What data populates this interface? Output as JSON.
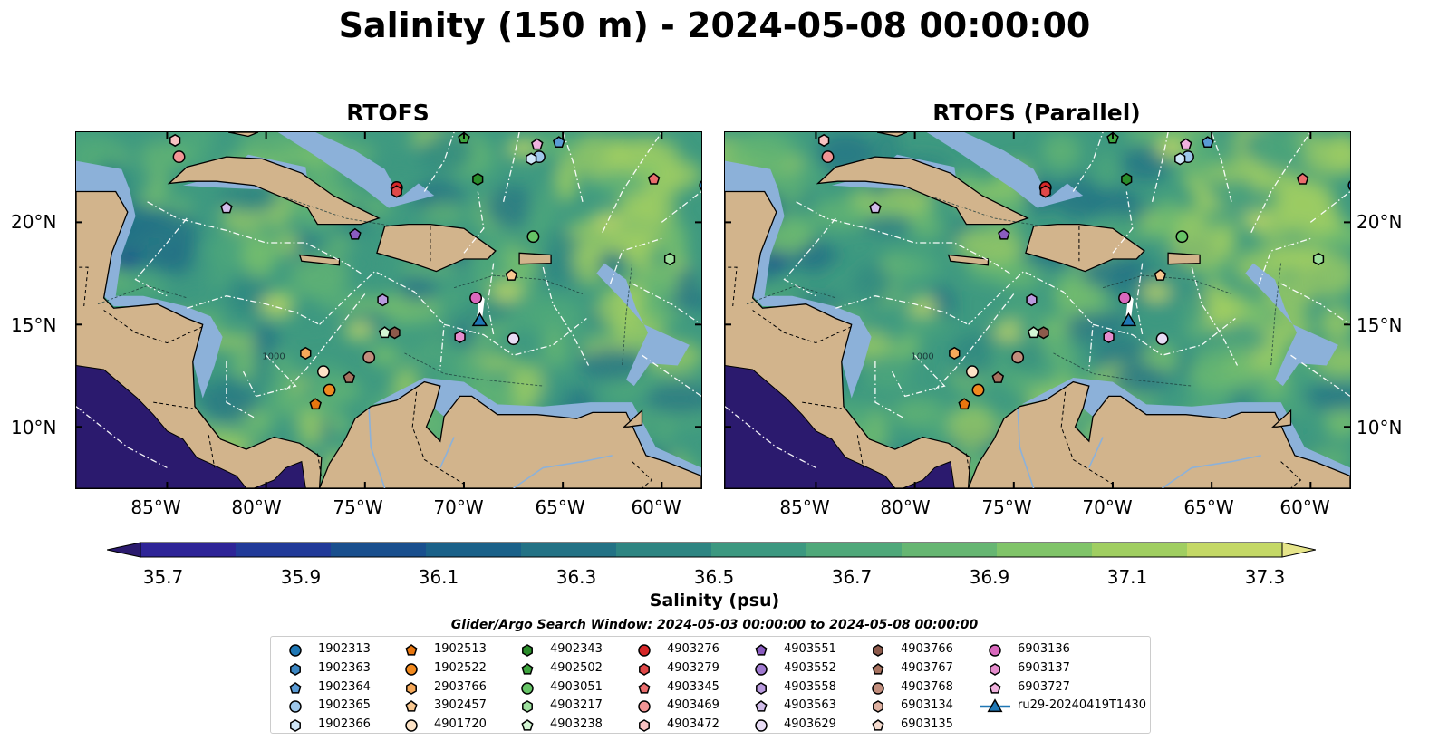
{
  "title": "Salinity (150 m) - 2024-05-08 00:00:00",
  "panels": [
    {
      "title": "RTOFS"
    },
    {
      "title": "RTOFS (Parallel)"
    }
  ],
  "axes": {
    "lon_ticks": [
      "85°W",
      "80°W",
      "75°W",
      "70°W",
      "65°W",
      "60°W"
    ],
    "lat_ticks": [
      "20°N",
      "15°N",
      "10°N"
    ]
  },
  "colorbar": {
    "label": "Salinity (psu)",
    "ticks": [
      "35.7",
      "35.9",
      "36.1",
      "36.3",
      "36.5",
      "36.7",
      "36.9",
      "37.1",
      "37.3"
    ],
    "colors": [
      "#2b1a6e",
      "#2e2497",
      "#213a99",
      "#194f8e",
      "#1a6189",
      "#237285",
      "#2e8582",
      "#3c9880",
      "#4fa87a",
      "#66b672",
      "#80c469",
      "#a0ce61",
      "#c4d866",
      "#e6e58a"
    ]
  },
  "contour_labels": [
    "1000"
  ],
  "legend": {
    "title": "Glider/Argo Search Window: 2024-05-03 00:00:00 to 2024-05-08 00:00:00",
    "items": [
      {
        "id": "1902313",
        "marker": "circle",
        "color": "#1f77b4"
      },
      {
        "id": "1902363",
        "marker": "hexagon",
        "color": "#3b86c2"
      },
      {
        "id": "1902364",
        "marker": "pentagon",
        "color": "#5a9bd5"
      },
      {
        "id": "1902365",
        "marker": "circle",
        "color": "#9ec7ea"
      },
      {
        "id": "1902366",
        "marker": "hexagon",
        "color": "#cfe6f7"
      },
      {
        "id": "1902513",
        "marker": "pentagon",
        "color": "#e8760f"
      },
      {
        "id": "1902522",
        "marker": "circle",
        "color": "#f28a1f"
      },
      {
        "id": "2903766",
        "marker": "hexagon",
        "color": "#f6a95a"
      },
      {
        "id": "3902457",
        "marker": "pentagon",
        "color": "#f9c890"
      },
      {
        "id": "4901720",
        "marker": "circle",
        "color": "#fde3c6"
      },
      {
        "id": "4902343",
        "marker": "hexagon",
        "color": "#2a8d2a"
      },
      {
        "id": "4902502",
        "marker": "pentagon",
        "color": "#3ea53e"
      },
      {
        "id": "4903051",
        "marker": "circle",
        "color": "#66c466"
      },
      {
        "id": "4903217",
        "marker": "hexagon",
        "color": "#9ddf9d"
      },
      {
        "id": "4903238",
        "marker": "pentagon",
        "color": "#d3f5d3"
      },
      {
        "id": "4903276",
        "marker": "circle",
        "color": "#d62728"
      },
      {
        "id": "4903279",
        "marker": "hexagon",
        "color": "#e04848"
      },
      {
        "id": "4903345",
        "marker": "pentagon",
        "color": "#ea6d6d"
      },
      {
        "id": "4903469",
        "marker": "circle",
        "color": "#f29595"
      },
      {
        "id": "4903472",
        "marker": "hexagon",
        "color": "#f8c2c2"
      },
      {
        "id": "4903551",
        "marker": "pentagon",
        "color": "#8a5cc0"
      },
      {
        "id": "4903552",
        "marker": "circle",
        "color": "#a07ad0"
      },
      {
        "id": "4903558",
        "marker": "hexagon",
        "color": "#b99ade"
      },
      {
        "id": "4903563",
        "marker": "pentagon",
        "color": "#d1bdea"
      },
      {
        "id": "4903629",
        "marker": "circle",
        "color": "#e8dcf5"
      },
      {
        "id": "4903766",
        "marker": "hexagon",
        "color": "#8c5a4b"
      },
      {
        "id": "4903767",
        "marker": "pentagon",
        "color": "#a7725f"
      },
      {
        "id": "4903768",
        "marker": "circle",
        "color": "#c18d7c"
      },
      {
        "id": "6903134",
        "marker": "hexagon",
        "color": "#dfb1a1"
      },
      {
        "id": "6903135",
        "marker": "pentagon",
        "color": "#f6dccf"
      },
      {
        "id": "6903136",
        "marker": "circle",
        "color": "#d968bd"
      },
      {
        "id": "6903137",
        "marker": "hexagon",
        "color": "#e58ccd"
      },
      {
        "id": "6903727",
        "marker": "pentagon",
        "color": "#f0b2de"
      },
      {
        "id": "ru29-20240419T1430",
        "marker": "triangle-line",
        "color": "#1f77b4"
      }
    ]
  },
  "platforms": [
    {
      "id": "1902313",
      "lon": -57.8,
      "lat": 21.8
    },
    {
      "id": "1902364",
      "lon": -65.2,
      "lat": 23.9
    },
    {
      "id": "1902365",
      "lon": -66.2,
      "lat": 23.2
    },
    {
      "id": "1902366",
      "lon": -66.6,
      "lat": 23.1
    },
    {
      "id": "1902513",
      "lon": -77.5,
      "lat": 11.1
    },
    {
      "id": "1902522",
      "lon": -76.8,
      "lat": 11.8
    },
    {
      "id": "2903766",
      "lon": -78.0,
      "lat": 13.6
    },
    {
      "id": "3902457",
      "lon": -67.6,
      "lat": 17.4
    },
    {
      "id": "4901720",
      "lon": -77.1,
      "lat": 12.7
    },
    {
      "id": "4902343",
      "lon": -69.3,
      "lat": 22.1
    },
    {
      "id": "4902502",
      "lon": -70.0,
      "lat": 24.1
    },
    {
      "id": "4903051",
      "lon": -66.5,
      "lat": 19.3
    },
    {
      "id": "4903217",
      "lon": -59.6,
      "lat": 18.2
    },
    {
      "id": "4903238",
      "lon": -74.0,
      "lat": 14.6
    },
    {
      "id": "4903276",
      "lon": -73.4,
      "lat": 21.7
    },
    {
      "id": "4903279",
      "lon": -73.4,
      "lat": 21.5
    },
    {
      "id": "4903345",
      "lon": -60.4,
      "lat": 22.1
    },
    {
      "id": "4903469",
      "lon": -84.4,
      "lat": 23.2
    },
    {
      "id": "4903472",
      "lon": -84.6,
      "lat": 24.0
    },
    {
      "id": "4903551",
      "lon": -75.5,
      "lat": 19.4
    },
    {
      "id": "4903558",
      "lon": -74.1,
      "lat": 16.2
    },
    {
      "id": "4903563",
      "lon": -82.0,
      "lat": 20.7
    },
    {
      "id": "4903629",
      "lon": -67.5,
      "lat": 14.3
    },
    {
      "id": "4903766",
      "lon": -73.5,
      "lat": 14.6
    },
    {
      "id": "4903767",
      "lon": -75.8,
      "lat": 12.4
    },
    {
      "id": "4903768",
      "lon": -74.8,
      "lat": 13.4
    },
    {
      "id": "6903136",
      "lon": -69.4,
      "lat": 16.3
    },
    {
      "id": "6903137",
      "lon": -70.2,
      "lat": 14.4
    },
    {
      "id": "6903727",
      "lon": -66.3,
      "lat": 23.8
    },
    {
      "id": "ru29-20240419T1430",
      "lon": -69.2,
      "lat": 15.2
    }
  ]
}
